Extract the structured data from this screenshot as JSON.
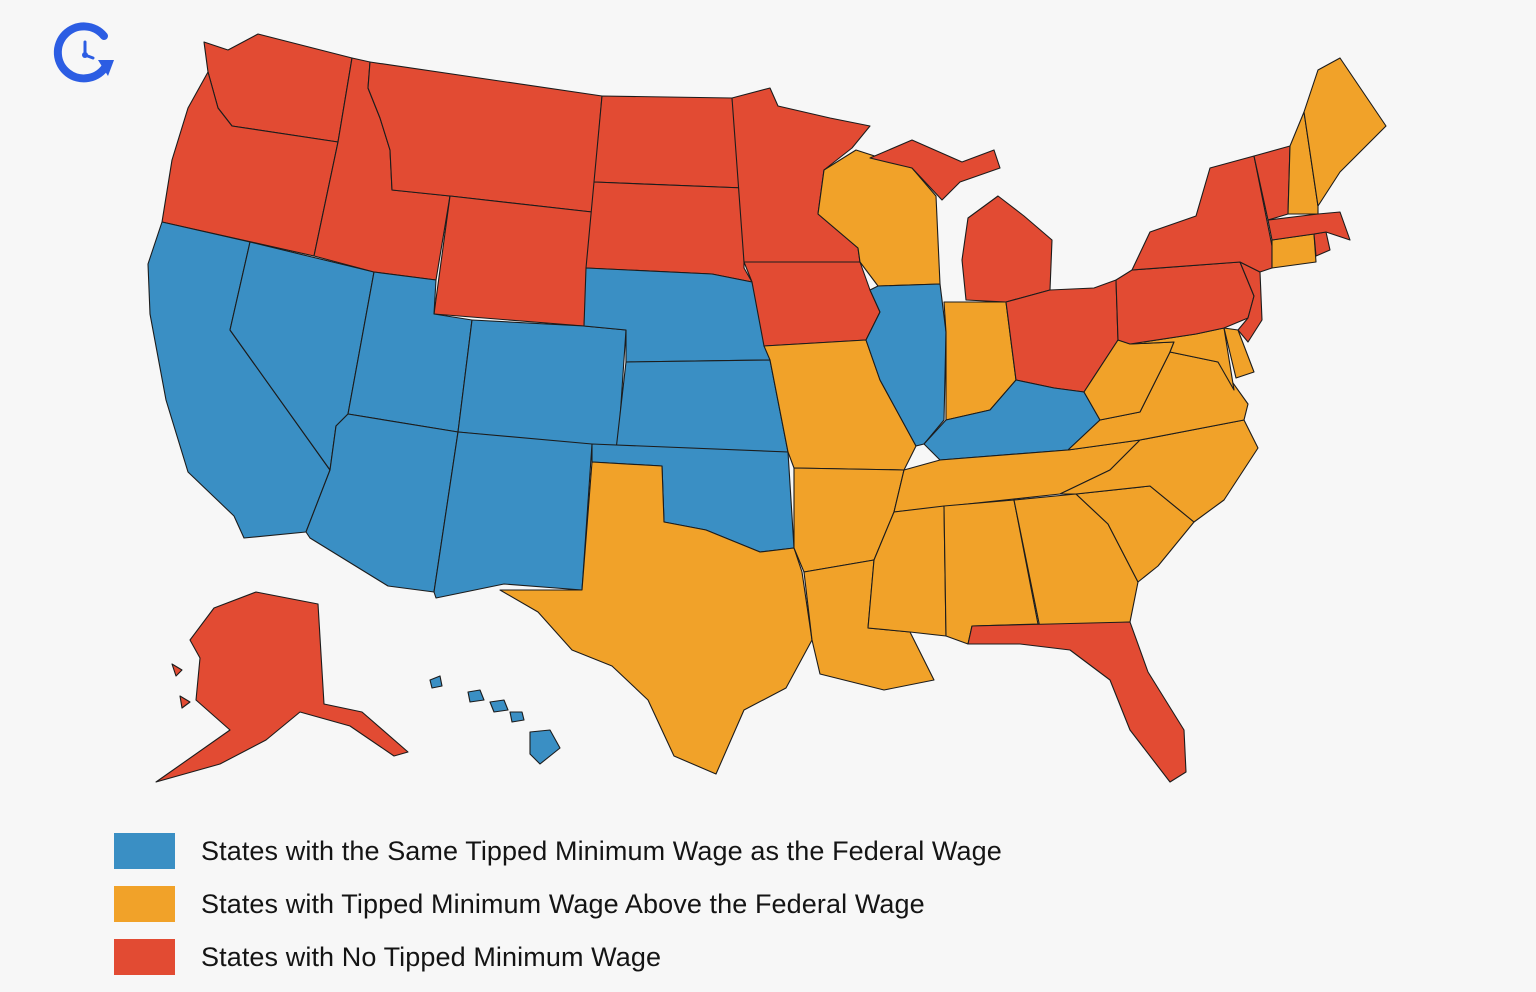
{
  "colors": {
    "same": "#3a8fc4",
    "above": "#f1a229",
    "none": "#e24b33",
    "logo": "#2c5de3"
  },
  "logo": {
    "icon": "clock-arrow-icon"
  },
  "legend": [
    {
      "key": "same",
      "label": "States with the Same Tipped Minimum Wage as the Federal Wage"
    },
    {
      "key": "above",
      "label": "States with Tipped Minimum Wage Above the Federal Wage"
    },
    {
      "key": "none",
      "label": "States with No Tipped Minimum Wage"
    }
  ],
  "states": {
    "WA": "none",
    "OR": "none",
    "ID": "none",
    "MT": "none",
    "WY": "none",
    "ND": "none",
    "SD": "none",
    "MN": "none",
    "IA": "none",
    "MI": "none",
    "OH": "none",
    "PA": "none",
    "NY": "none",
    "VT": "none",
    "MA": "none",
    "RI": "none",
    "NJ": "none",
    "FL": "none",
    "AK": "none",
    "CA": "same",
    "NV": "same",
    "UT": "same",
    "AZ": "same",
    "CO": "same",
    "NM": "same",
    "NE": "same",
    "KS": "same",
    "OK": "same",
    "IL": "same",
    "KY": "same",
    "HI": "same",
    "TX": "above",
    "MO": "above",
    "AR": "above",
    "LA": "above",
    "WI": "above",
    "IN": "above",
    "TN": "above",
    "MS": "above",
    "AL": "above",
    "GA": "above",
    "SC": "above",
    "NC": "above",
    "VA": "above",
    "WV": "above",
    "MD": "above",
    "DE": "above",
    "CT": "above",
    "NH": "above",
    "ME": "above"
  }
}
